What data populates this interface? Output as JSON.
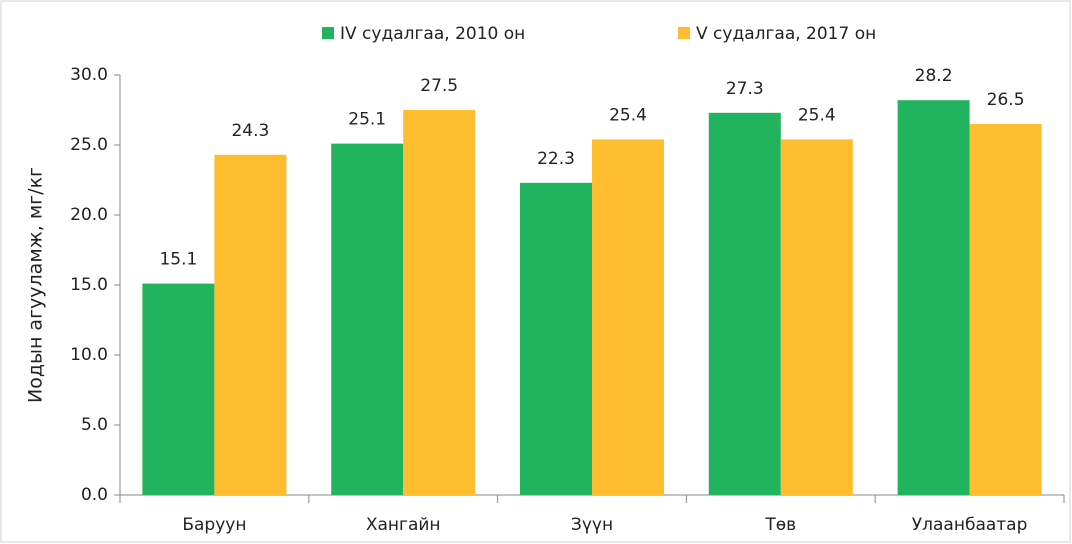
{
  "chart_data": {
    "type": "bar",
    "y_label": "Иодын агууламж, мг/кг",
    "categories": [
      "Баруун",
      "Хангайн",
      "Зүүн",
      "Төв",
      "Улаанбаатар"
    ],
    "series": [
      {
        "name": "IV судалгаа, 2010 он",
        "color": "#22b35e",
        "values": [
          15.1,
          25.1,
          22.3,
          27.3,
          28.2
        ]
      },
      {
        "name": "V судалгаа, 2017 он",
        "color": "#fdbd2f",
        "values": [
          24.3,
          27.5,
          25.4,
          25.4,
          26.5
        ]
      }
    ],
    "ylim": [
      0,
      30
    ],
    "yticks": [
      {
        "value": 0,
        "label": "0.0"
      },
      {
        "value": 5,
        "label": "5.0"
      },
      {
        "value": 10,
        "label": "10.0"
      },
      {
        "value": 15,
        "label": "15.0"
      },
      {
        "value": 20,
        "label": "20.0"
      },
      {
        "value": 25,
        "label": "25.0"
      },
      {
        "value": 30,
        "label": "30.0"
      }
    ],
    "legend": "top"
  }
}
